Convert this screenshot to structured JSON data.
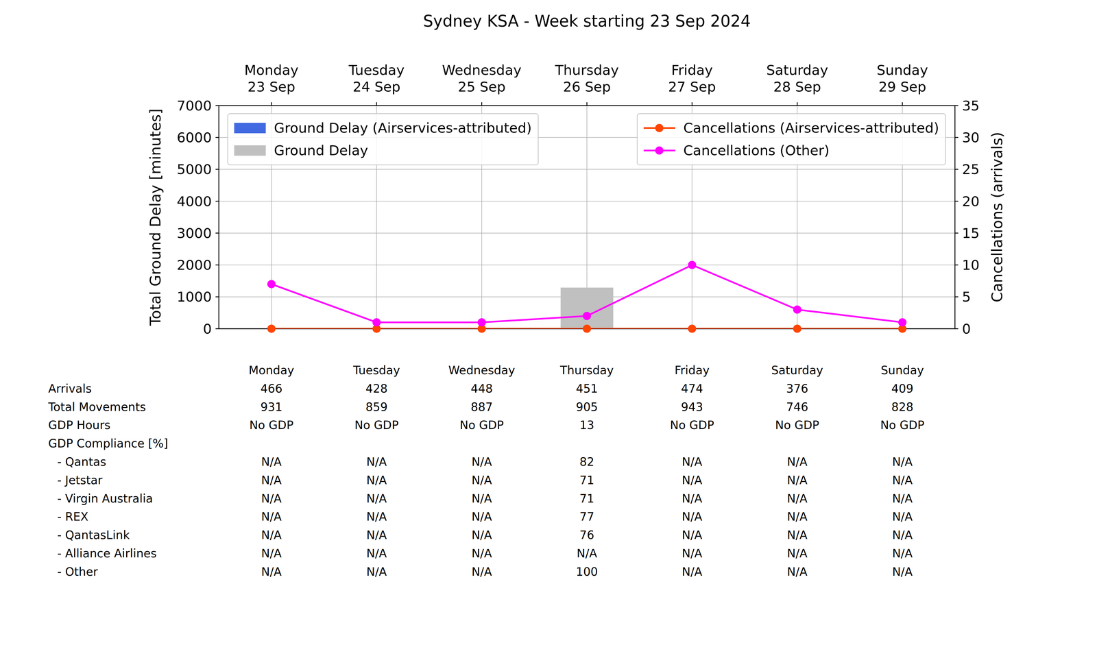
{
  "chart_data": {
    "type": "bar",
    "title": "Sydney KSA - Week starting 23 Sep 2024",
    "y_label": "Total Ground Delay [minutes]",
    "y2_label": "Cancellations (arrivals)",
    "categories": [
      "Monday\n23 Sep",
      "Tuesday\n24 Sep",
      "Wednesday\n25 Sep",
      "Thursday\n26 Sep",
      "Friday\n27 Sep",
      "Saturday\n28 Sep",
      "Sunday\n29 Sep"
    ],
    "series": [
      {
        "name": "Ground Delay (Airservices-attributed)",
        "type": "bar",
        "color": "#4169e1",
        "values": [
          0,
          0,
          0,
          0,
          0,
          0,
          0
        ]
      },
      {
        "name": "Ground Delay",
        "type": "bar",
        "color": "#c0c0c0",
        "values": [
          0,
          0,
          0,
          1290,
          0,
          0,
          0
        ]
      },
      {
        "name": "Cancellations (Airservices-attributed)",
        "type": "line",
        "axis": "y2",
        "color": "#ff4500",
        "marker": "o",
        "values": [
          0,
          0,
          0,
          0,
          0,
          0,
          0
        ]
      },
      {
        "name": "Cancellations (Other)",
        "type": "line",
        "axis": "y2",
        "color": "#ff00ff",
        "marker": "o",
        "values": [
          7,
          1,
          1,
          2,
          10,
          3,
          1
        ]
      }
    ],
    "ylim": [
      0,
      7000
    ],
    "yticks": [
      0,
      1000,
      2000,
      3000,
      4000,
      5000,
      6000,
      7000
    ],
    "y2lim": [
      0,
      35
    ],
    "y2ticks": [
      0,
      5,
      10,
      15,
      20,
      25,
      30,
      35
    ],
    "grid": true,
    "stacked": true,
    "legend": "upper left"
  },
  "table": {
    "columns": [
      "Monday",
      "Tuesday",
      "Wednesday",
      "Thursday",
      "Friday",
      "Saturday",
      "Sunday"
    ],
    "rows": [
      {
        "label": "Arrivals",
        "cells": [
          466,
          428,
          448,
          451,
          474,
          376,
          409
        ]
      },
      {
        "label": "Total Movements",
        "cells": [
          931,
          859,
          887,
          905,
          943,
          746,
          828
        ]
      },
      {
        "label": "GDP Hours",
        "cells": [
          "No GDP",
          "No GDP",
          "No GDP",
          13,
          "No GDP",
          "No GDP",
          "No GDP"
        ]
      },
      {
        "label": "GDP Compliance [%]",
        "rows": [
          {
            "label": "- Qantas",
            "cells": [
              "N/A",
              "N/A",
              "N/A",
              82,
              "N/A",
              "N/A",
              "N/A"
            ]
          },
          {
            "label": "- Jetstar",
            "cells": [
              "N/A",
              "N/A",
              "N/A",
              71,
              "N/A",
              "N/A",
              "N/A"
            ]
          },
          {
            "label": "- Virgin Australia",
            "cells": [
              "N/A",
              "N/A",
              "N/A",
              71,
              "N/A",
              "N/A",
              "N/A"
            ]
          },
          {
            "label": "- REX",
            "cells": [
              "N/A",
              "N/A",
              "N/A",
              77,
              "N/A",
              "N/A",
              "N/A"
            ]
          },
          {
            "label": "- QantasLink",
            "cells": [
              "N/A",
              "N/A",
              "N/A",
              76,
              "N/A",
              "N/A",
              "N/A"
            ]
          },
          {
            "label": "- Alliance Airlines",
            "cells": [
              "N/A",
              "N/A",
              "N/A",
              "N/A",
              "N/A",
              "N/A",
              "N/A"
            ]
          },
          {
            "label": "- Other",
            "cells": [
              "N/A",
              "N/A",
              "N/A",
              100,
              "N/A",
              "N/A",
              "N/A"
            ]
          }
        ]
      }
    ]
  }
}
